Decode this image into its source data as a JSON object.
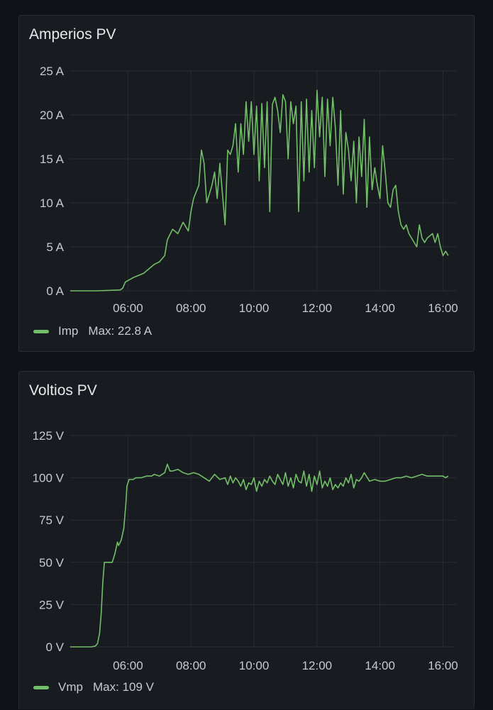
{
  "colors": {
    "series": "#73bf69",
    "grid": "#2a2d33",
    "text": "#c7cad1"
  },
  "x_ticks": [
    "06:00",
    "08:00",
    "10:00",
    "12:00",
    "14:00",
    "16:00"
  ],
  "chart_data": [
    {
      "type": "line",
      "title": "Amperios PV",
      "yunit": "A",
      "ylim": [
        0,
        25
      ],
      "y_ticks": [
        "0 A",
        "5 A",
        "10 A",
        "15 A",
        "20 A",
        "25 A"
      ],
      "x_ticks": [
        "06:00",
        "08:00",
        "10:00",
        "12:00",
        "14:00",
        "16:00"
      ],
      "xlim": [
        "04:10",
        "16:25"
      ],
      "grid": true,
      "legend_position": "bottom-left",
      "series": [
        {
          "name": "Imp",
          "stat": "Max: 22.8 A",
          "x": [
            "04:10",
            "05:00",
            "05:45",
            "05:50",
            "05:55",
            "06:10",
            "06:30",
            "06:50",
            "07:00",
            "07:10",
            "07:15",
            "07:25",
            "07:35",
            "07:45",
            "07:55",
            "08:00",
            "08:05",
            "08:15",
            "08:20",
            "08:25",
            "08:30",
            "08:40",
            "08:45",
            "08:50",
            "08:55",
            "09:05",
            "09:10",
            "09:15",
            "09:20",
            "09:25",
            "09:30",
            "09:35",
            "09:40",
            "09:45",
            "09:50",
            "09:55",
            "10:00",
            "10:05",
            "10:10",
            "10:15",
            "10:20",
            "10:25",
            "10:30",
            "10:35",
            "10:40",
            "10:45",
            "10:50",
            "10:55",
            "11:00",
            "11:05",
            "11:10",
            "11:15",
            "11:20",
            "11:25",
            "11:30",
            "11:35",
            "11:40",
            "11:45",
            "11:50",
            "11:55",
            "12:00",
            "12:05",
            "12:10",
            "12:15",
            "12:20",
            "12:25",
            "12:30",
            "12:35",
            "12:40",
            "12:45",
            "12:50",
            "12:55",
            "13:00",
            "13:05",
            "13:10",
            "13:15",
            "13:20",
            "13:25",
            "13:30",
            "13:35",
            "13:40",
            "13:45",
            "13:50",
            "13:55",
            "14:00",
            "14:05",
            "14:10",
            "14:15",
            "14:20",
            "14:25",
            "14:30",
            "14:35",
            "14:40",
            "14:45",
            "14:50",
            "14:55",
            "15:00",
            "15:10",
            "15:15",
            "15:20",
            "15:25",
            "15:30",
            "15:40",
            "15:45",
            "15:50",
            "15:55",
            "16:00",
            "16:05",
            "16:10"
          ],
          "values": [
            0.0,
            0.0,
            0.1,
            0.3,
            1.0,
            1.5,
            2.0,
            3.0,
            3.3,
            4.0,
            5.8,
            7.0,
            6.5,
            7.8,
            6.8,
            9.0,
            10.5,
            12.0,
            16.0,
            14.5,
            10.0,
            12.0,
            13.5,
            10.5,
            14.5,
            7.5,
            16.0,
            15.5,
            16.5,
            19.0,
            13.5,
            19.0,
            15.5,
            21.5,
            17.0,
            21.5,
            15.5,
            21.0,
            12.5,
            21.3,
            14.0,
            21.5,
            9.0,
            21.2,
            22.0,
            20.5,
            18.0,
            22.3,
            21.5,
            15.0,
            21.5,
            19.0,
            21.0,
            9.0,
            21.5,
            12.5,
            21.8,
            13.5,
            20.5,
            14.0,
            22.8,
            17.5,
            22.0,
            13.0,
            21.8,
            16.5,
            22.0,
            18.5,
            12.0,
            20.5,
            11.0,
            18.0,
            16.0,
            12.5,
            17.0,
            10.0,
            17.5,
            13.0,
            19.5,
            9.5,
            17.5,
            11.5,
            14.0,
            12.0,
            10.5,
            16.5,
            13.5,
            10.0,
            9.5,
            11.5,
            12.0,
            9.0,
            7.5,
            7.0,
            7.5,
            6.5,
            6.0,
            5.0,
            7.5,
            6.0,
            5.5,
            6.0,
            6.5,
            5.5,
            6.5,
            5.0,
            4.0,
            4.5,
            4.0
          ]
        }
      ]
    },
    {
      "type": "line",
      "title": "Voltios PV",
      "yunit": "V",
      "ylim": [
        0,
        125
      ],
      "y_ticks": [
        "0 V",
        "25 V",
        "50 V",
        "75 V",
        "100 V",
        "125 V"
      ],
      "x_ticks": [
        "06:00",
        "08:00",
        "10:00",
        "12:00",
        "14:00",
        "16:00"
      ],
      "xlim": [
        "04:10",
        "16:25"
      ],
      "grid": true,
      "legend_position": "bottom-left",
      "series": [
        {
          "name": "Vmp",
          "stat": "Max: 109 V",
          "x": [
            "04:10",
            "04:50",
            "04:58",
            "05:02",
            "05:06",
            "05:09",
            "05:12",
            "05:15",
            "05:20",
            "05:30",
            "05:35",
            "05:40",
            "05:42",
            "05:47",
            "05:52",
            "05:56",
            "05:58",
            "06:02",
            "06:05",
            "06:10",
            "06:15",
            "06:25",
            "06:35",
            "06:45",
            "06:50",
            "07:00",
            "07:10",
            "07:15",
            "07:20",
            "07:25",
            "07:35",
            "07:45",
            "07:55",
            "08:05",
            "08:15",
            "08:25",
            "08:35",
            "08:45",
            "08:55",
            "09:05",
            "09:10",
            "09:15",
            "09:20",
            "09:25",
            "09:30",
            "09:35",
            "09:40",
            "09:45",
            "09:50",
            "09:55",
            "10:00",
            "10:05",
            "10:10",
            "10:15",
            "10:20",
            "10:25",
            "10:30",
            "10:35",
            "10:40",
            "10:45",
            "10:50",
            "10:55",
            "11:00",
            "11:05",
            "11:10",
            "11:15",
            "11:20",
            "11:25",
            "11:30",
            "11:35",
            "11:40",
            "11:45",
            "11:50",
            "11:55",
            "12:00",
            "12:05",
            "12:10",
            "12:15",
            "12:20",
            "12:25",
            "12:30",
            "12:35",
            "12:40",
            "12:45",
            "12:50",
            "12:55",
            "13:00",
            "13:05",
            "13:10",
            "13:15",
            "13:20",
            "13:25",
            "13:30",
            "13:40",
            "13:50",
            "14:00",
            "14:10",
            "14:20",
            "14:30",
            "14:40",
            "14:50",
            "15:00",
            "15:10",
            "15:20",
            "15:30",
            "15:40",
            "15:50",
            "16:00",
            "16:05",
            "16:10"
          ],
          "values": [
            0,
            0,
            0.5,
            2,
            8,
            20,
            38,
            50,
            50,
            50,
            55,
            62,
            60,
            63,
            70,
            85,
            95,
            99,
            99,
            99,
            100,
            100,
            101,
            101,
            102,
            101,
            103,
            108,
            104,
            104,
            105,
            103,
            102,
            103,
            102,
            100,
            98,
            102,
            99,
            100,
            96,
            101,
            97,
            100,
            98,
            95,
            99,
            93,
            97,
            96,
            100,
            92,
            98,
            95,
            99,
            97,
            101,
            98,
            96,
            102,
            99,
            96,
            103,
            95,
            100,
            94,
            102,
            98,
            97,
            104,
            95,
            102,
            92,
            101,
            96,
            104,
            94,
            98,
            95,
            100,
            93,
            96,
            94,
            97,
            95,
            100,
            97,
            102,
            94,
            99,
            98,
            100,
            103,
            98,
            99,
            98,
            98,
            99,
            100,
            100,
            101,
            100,
            101,
            102,
            101,
            101,
            101,
            101,
            100,
            101
          ]
        }
      ]
    }
  ]
}
